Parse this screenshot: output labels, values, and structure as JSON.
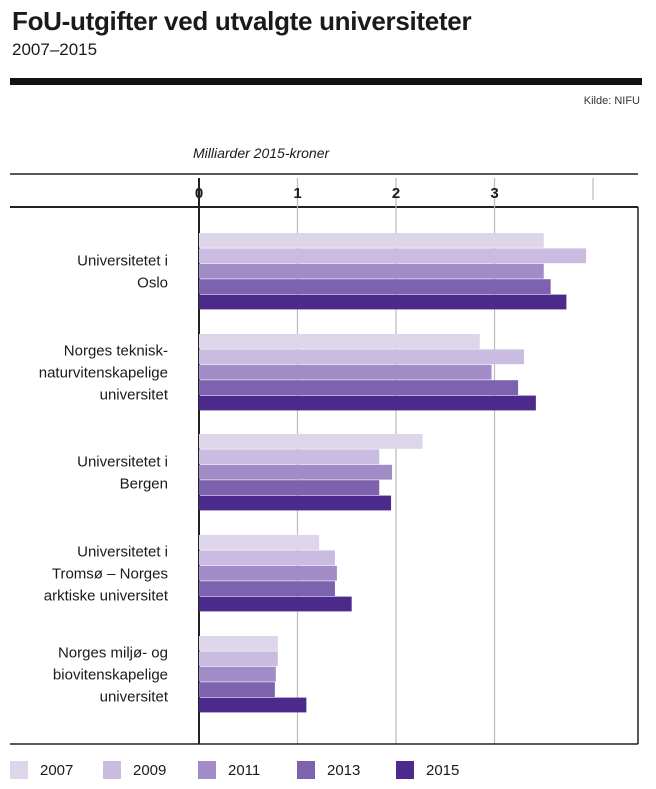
{
  "title": "FoU-utgifter ved utvalgte universiteter",
  "subtitle": "2007–2015",
  "source": "Kilde: NIFU",
  "chart_data": {
    "type": "bar",
    "orientation": "horizontal",
    "unit_label": "Milliarder 2015-kroner",
    "xlim": [
      0,
      4.5
    ],
    "x_ticks": [
      0,
      1,
      2,
      3
    ],
    "grid": true,
    "legend_position": "bottom",
    "categories": [
      [
        "Universitetet i",
        "Oslo"
      ],
      [
        "Norges teknisk-",
        "naturvitenskapelige",
        "universitet"
      ],
      [
        "Universitetet i",
        "Bergen"
      ],
      [
        "Universitetet i",
        "Tromsø – Norges",
        "arktiske universitet"
      ],
      [
        "Norges miljø- og",
        "biovitenskapelige",
        "universitet"
      ]
    ],
    "series": [
      {
        "name": "2007",
        "color": "#ddd5ea",
        "values": [
          3.5,
          2.85,
          2.27,
          1.22,
          0.8
        ]
      },
      {
        "name": "2009",
        "color": "#c9bce0",
        "values": [
          3.93,
          3.3,
          1.83,
          1.38,
          0.8
        ]
      },
      {
        "name": "2011",
        "color": "#a18cc8",
        "values": [
          3.5,
          2.97,
          1.96,
          1.4,
          0.78
        ]
      },
      {
        "name": "2013",
        "color": "#7d62b0",
        "values": [
          3.57,
          3.24,
          1.83,
          1.38,
          0.77
        ]
      },
      {
        "name": "2015",
        "color": "#4b2a8c",
        "values": [
          3.73,
          3.42,
          1.95,
          1.55,
          1.09
        ]
      }
    ]
  }
}
